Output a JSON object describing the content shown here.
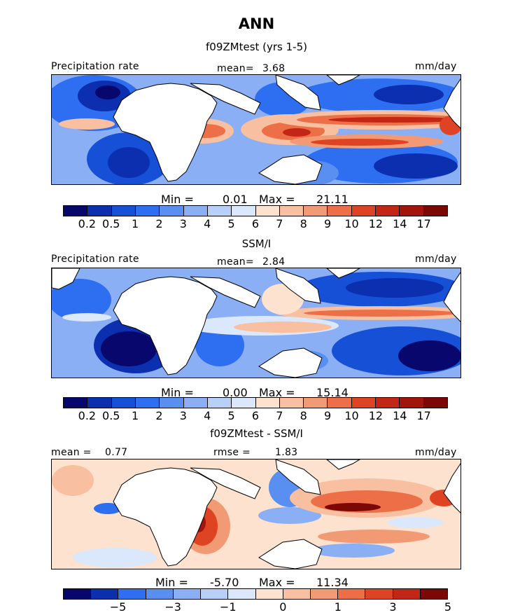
{
  "title": "ANN",
  "chart_data": [
    {
      "type": "heatmap",
      "title": "f09ZMtest (yrs 1-5)",
      "variable": "Precipitation rate",
      "units": "mm/day",
      "mean_label": "mean=",
      "mean": "3.68",
      "min_label": "Min =",
      "min": "0.01",
      "max_label": "Max =",
      "max": "21.11",
      "colorbar_levels": [
        "0.2",
        "0.5",
        "1",
        "2",
        "3",
        "4",
        "5",
        "6",
        "7",
        "8",
        "9",
        "10",
        "12",
        "14",
        "17"
      ]
    },
    {
      "type": "heatmap",
      "title": "SSM/I",
      "variable": "Precipitation rate",
      "units": "mm/day",
      "mean_label": "mean=",
      "mean": "2.84",
      "min_label": "Min =",
      "min": "0.00",
      "max_label": "Max =",
      "max": "15.14",
      "colorbar_levels": [
        "0.2",
        "0.5",
        "1",
        "2",
        "3",
        "4",
        "5",
        "6",
        "7",
        "8",
        "9",
        "10",
        "12",
        "14",
        "17"
      ]
    },
    {
      "type": "heatmap",
      "title": "f09ZMtest - SSM/I",
      "units": "mm/day",
      "mean_label": "mean =",
      "mean": "0.77",
      "rmse_label": "rmse =",
      "rmse": "1.83",
      "min_label": "Min =",
      "min": "-5.70",
      "max_label": "Max =",
      "max": "11.34",
      "colorbar_levels": [
        "−5",
        "−3",
        "−1",
        "0",
        "1",
        "3",
        "5"
      ]
    }
  ],
  "palettes": {
    "precip": [
      "#08076e",
      "#0c2fb0",
      "#1650d6",
      "#2e6ef0",
      "#5a8ff2",
      "#8aaff5",
      "#b8cff7",
      "#dbe7fa",
      "#fde2d0",
      "#f8c0a0",
      "#f29a74",
      "#ec6f48",
      "#de4423",
      "#c32614",
      "#a3140a",
      "#7b0805"
    ],
    "diff": [
      "#08076e",
      "#0c2fb0",
      "#2e6ef0",
      "#5a8ff2",
      "#8aaff5",
      "#b8cff7",
      "#dbe7fa",
      "#fde2d0",
      "#f8c0a0",
      "#f29a74",
      "#ec6f48",
      "#de4423",
      "#c32614",
      "#7b0805"
    ]
  }
}
